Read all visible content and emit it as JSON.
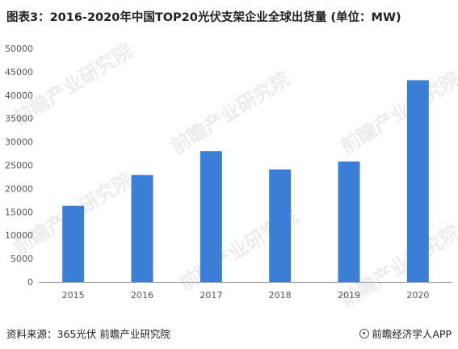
{
  "title": "图表3：2016-2020年中国TOP20光伏支架企业全球出货量 (单位：MW)",
  "watermark_text": "前瞻产业研究院",
  "footer": {
    "source": "资料来源：365光伏 前瞻产业研究院",
    "brand": "前瞻经济学人APP"
  },
  "colors": {
    "bar": "#3C7FD9",
    "axis": "#999999",
    "tick_label": "#555555"
  },
  "chart_data": {
    "type": "bar",
    "title": "图表3：2016-2020年中国TOP20光伏支架企业全球出货量 (单位：MW)",
    "xlabel": "",
    "ylabel": "",
    "categories": [
      "2015",
      "2016",
      "2017",
      "2018",
      "2019",
      "2020"
    ],
    "values": [
      16300,
      22900,
      28000,
      24100,
      25800,
      43200
    ],
    "ylim": [
      0,
      50000
    ],
    "yticks": [
      0,
      5000,
      10000,
      15000,
      20000,
      25000,
      30000,
      35000,
      40000,
      45000,
      50000
    ],
    "grid": false,
    "legend": "none"
  }
}
